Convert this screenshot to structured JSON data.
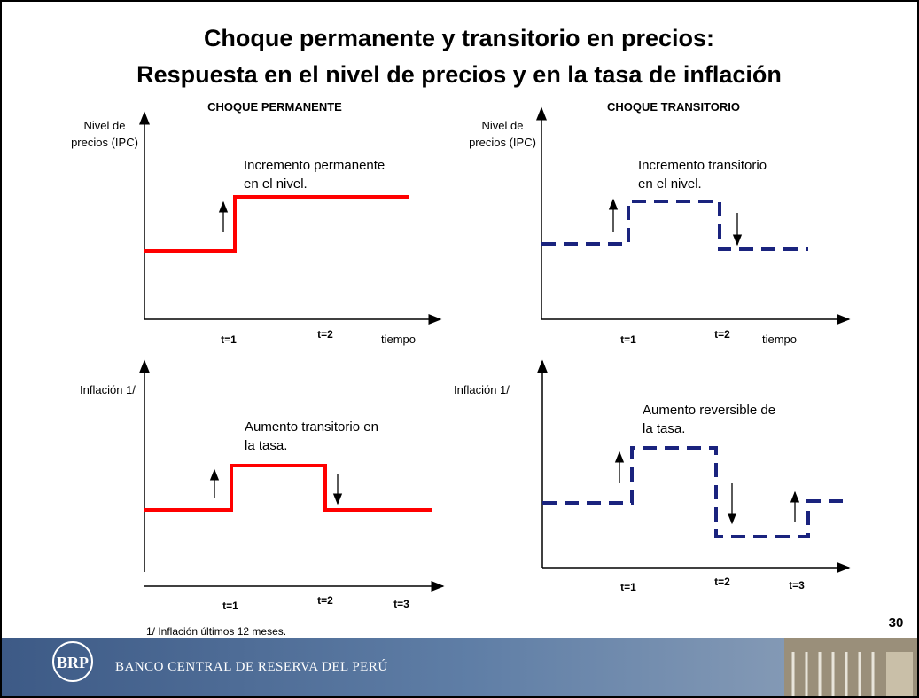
{
  "title": [
    "Choque permanente y transitorio en precios:",
    "Respuesta en el nivel de precios y en la tasa de inflación"
  ],
  "panels": [
    {
      "header": "CHOQUE PERMANENTE",
      "y_label": [
        "Nivel de",
        "precios (IPC)"
      ],
      "annotation": [
        "Incremento permanente",
        "en el nivel."
      ],
      "x_labels": [
        "t=1",
        "t=2",
        "tiempo"
      ]
    },
    {
      "header": "CHOQUE TRANSITORIO",
      "y_label": [
        "Nivel de",
        "precios (IPC)"
      ],
      "annotation": [
        "Incremento transitorio",
        "en el nivel."
      ],
      "x_labels": [
        "t=1",
        "t=2",
        "tiempo"
      ]
    },
    {
      "y_label": [
        "Inflación 1/"
      ],
      "annotation": [
        "Aumento transitorio en",
        "la tasa."
      ],
      "x_labels": [
        "t=1",
        "t=2",
        "t=3"
      ]
    },
    {
      "y_label": [
        "Inflación 1/"
      ],
      "annotation": [
        "Aumento reversible de",
        "la tasa."
      ],
      "x_labels": [
        "t=1",
        "t=2",
        "t=3"
      ]
    }
  ],
  "footnote": "1/ Inflación últimos 12 meses.",
  "page_number": "30",
  "footer": {
    "bank_name": "BANCO CENTRAL DE RESERVA DEL PERÚ"
  }
}
